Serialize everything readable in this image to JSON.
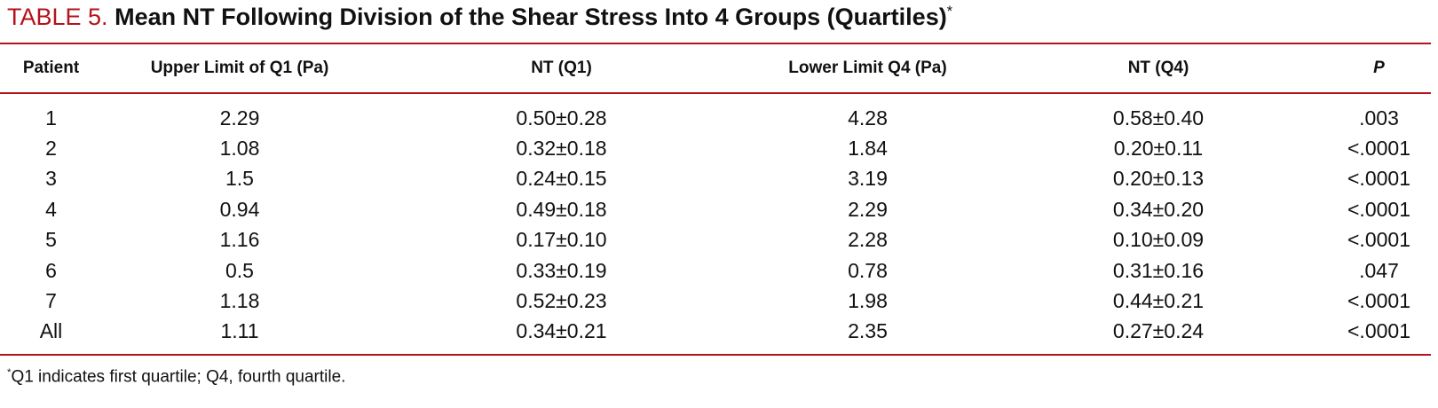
{
  "title": {
    "label": "TABLE 5.",
    "text": "Mean NT Following Division of the Shear Stress Into 4 Groups (Quartiles)",
    "marker": "*"
  },
  "table": {
    "header": [
      "Patient",
      "Upper Limit of Q1 (Pa)",
      "NT (Q1)",
      "Lower Limit Q4 (Pa)",
      "NT (Q4)",
      "P"
    ],
    "rows": [
      [
        "1",
        "2.29",
        "0.50±0.28",
        "4.28",
        "0.58±0.40",
        ".003"
      ],
      [
        "2",
        "1.08",
        "0.32±0.18",
        "1.84",
        "0.20±0.11",
        "<.0001"
      ],
      [
        "3",
        "1.5",
        "0.24±0.15",
        "3.19",
        "0.20±0.13",
        "<.0001"
      ],
      [
        "4",
        "0.94",
        "0.49±0.18",
        "2.29",
        "0.34±0.20",
        "<.0001"
      ],
      [
        "5",
        "1.16",
        "0.17±0.10",
        "2.28",
        "0.10±0.09",
        "<.0001"
      ],
      [
        "6",
        "0.5",
        "0.33±0.19",
        "0.78",
        "0.31±0.16",
        ".047"
      ],
      [
        "7",
        "1.18",
        "0.52±0.23",
        "1.98",
        "0.44±0.21",
        "<.0001"
      ],
      [
        "All",
        "1.11",
        "0.34±0.21",
        "2.35",
        "0.27±0.24",
        "<.0001"
      ]
    ]
  },
  "footnote": {
    "marker": "*",
    "text": "Q1 indicates first quartile; Q4, fourth quartile."
  }
}
